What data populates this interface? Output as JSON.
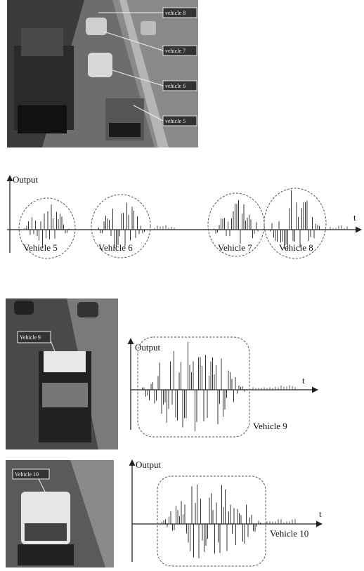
{
  "figure_1": {
    "photo_labels": [
      "vehicle 8",
      "vehicle 7",
      "vehicle 6",
      "vehicle 5"
    ],
    "plot": {
      "y_label": "Output",
      "x_label": "t",
      "group_labels": [
        "Vehicle 5",
        "Vehicle 6",
        "Vehicle 7",
        "Vehicle 8"
      ]
    }
  },
  "figure_2": {
    "photo_label": "Vehicle 9",
    "plot": {
      "y_label": "Output",
      "x_label": "t",
      "group_label": "Vehicle 9"
    }
  },
  "figure_3": {
    "photo_label": "Vehicle 10",
    "plot": {
      "y_label": "Output",
      "x_label": "t",
      "group_label": "Vehicle 10"
    }
  }
}
